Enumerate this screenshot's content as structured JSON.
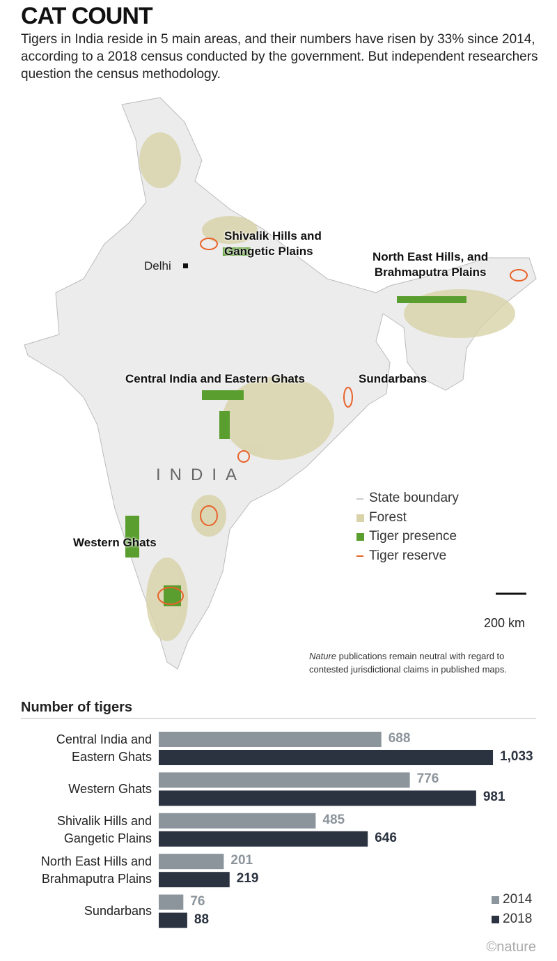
{
  "header": {
    "title": "CAT COUNT",
    "subtitle": "Tigers in India reside in 5 main areas, and their numbers have risen by 33% since 2014, according to a 2018 census conducted by the government. But independent researchers question the census methodology."
  },
  "map": {
    "labels": [
      "Shivalik Hills and\nGangetic Plains",
      "North East Hills, and\nBrahmaputra Plains",
      "Delhi",
      "Central India and Eastern Ghats",
      "Sundarbans",
      "INDIA",
      "Western Ghats"
    ],
    "legend": [
      "State boundary",
      "Forest",
      "Tiger presence",
      "Tiger reserve"
    ],
    "scale": "200 km",
    "note": {
      "emphasis": "Nature",
      "text": "publications remain neutral with regard to contested jurisdictional claims in published maps."
    }
  },
  "chart_data": {
    "type": "bar",
    "orientation": "horizontal",
    "title": "Number of tigers",
    "categories": [
      "Central India and\nEastern Ghats",
      "Western Ghats",
      "Shivalik Hills and\nGangetic Plains",
      "North East Hills and\nBrahmaputra Plains",
      "Sundarbans"
    ],
    "series": [
      {
        "name": "2014",
        "color": "#8c949c",
        "values": [
          688,
          776,
          485,
          201,
          76
        ]
      },
      {
        "name": "2018",
        "color": "#2b3340",
        "values": [
          1033,
          981,
          646,
          219,
          88
        ],
        "value_labels": [
          "1,033",
          "981",
          "646",
          "219",
          "88"
        ]
      }
    ],
    "legend_position": "bottom-right"
  },
  "footer": {
    "credit": "©nature"
  }
}
